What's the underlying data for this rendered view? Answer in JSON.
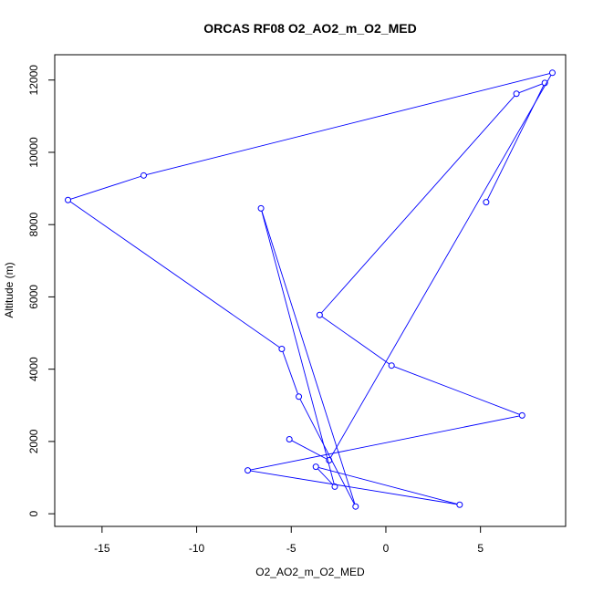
{
  "chart_data": {
    "type": "line",
    "title": "ORCAS RF08 O2_AO2_m_O2_MED",
    "xlabel": "O2_AO2_m_O2_MED",
    "ylabel": "Altitude (m)",
    "xlim": [
      -17.5,
      9.5
    ],
    "ylim": [
      -350,
      12700
    ],
    "x_ticks": [
      -15,
      -10,
      -5,
      0,
      5
    ],
    "x_tick_labels": [
      "-15",
      "-10",
      "-5",
      "0",
      "5"
    ],
    "y_ticks": [
      0,
      2000,
      4000,
      6000,
      8000,
      10000,
      12000
    ],
    "y_tick_labels": [
      "0",
      "2000",
      "4000",
      "6000",
      "8000",
      "10000",
      "12000"
    ],
    "grid": false,
    "markers": "open-circle",
    "line_color": "#0000ff",
    "series": [
      {
        "x": [
          5.3,
          8.4,
          6.9,
          -3.5,
          0.3,
          7.2,
          -7.3,
          3.9,
          -3.7,
          -2.7,
          -6.6,
          -1.6,
          -4.6,
          -5.5,
          -16.8,
          -12.8,
          8.8,
          -3.0,
          -5.1
        ],
        "y": [
          8620,
          11920,
          11620,
          5500,
          4100,
          2720,
          1200,
          250,
          1300,
          750,
          8450,
          200,
          3240,
          4560,
          8680,
          9360,
          12200,
          1480,
          2060
        ]
      }
    ]
  }
}
